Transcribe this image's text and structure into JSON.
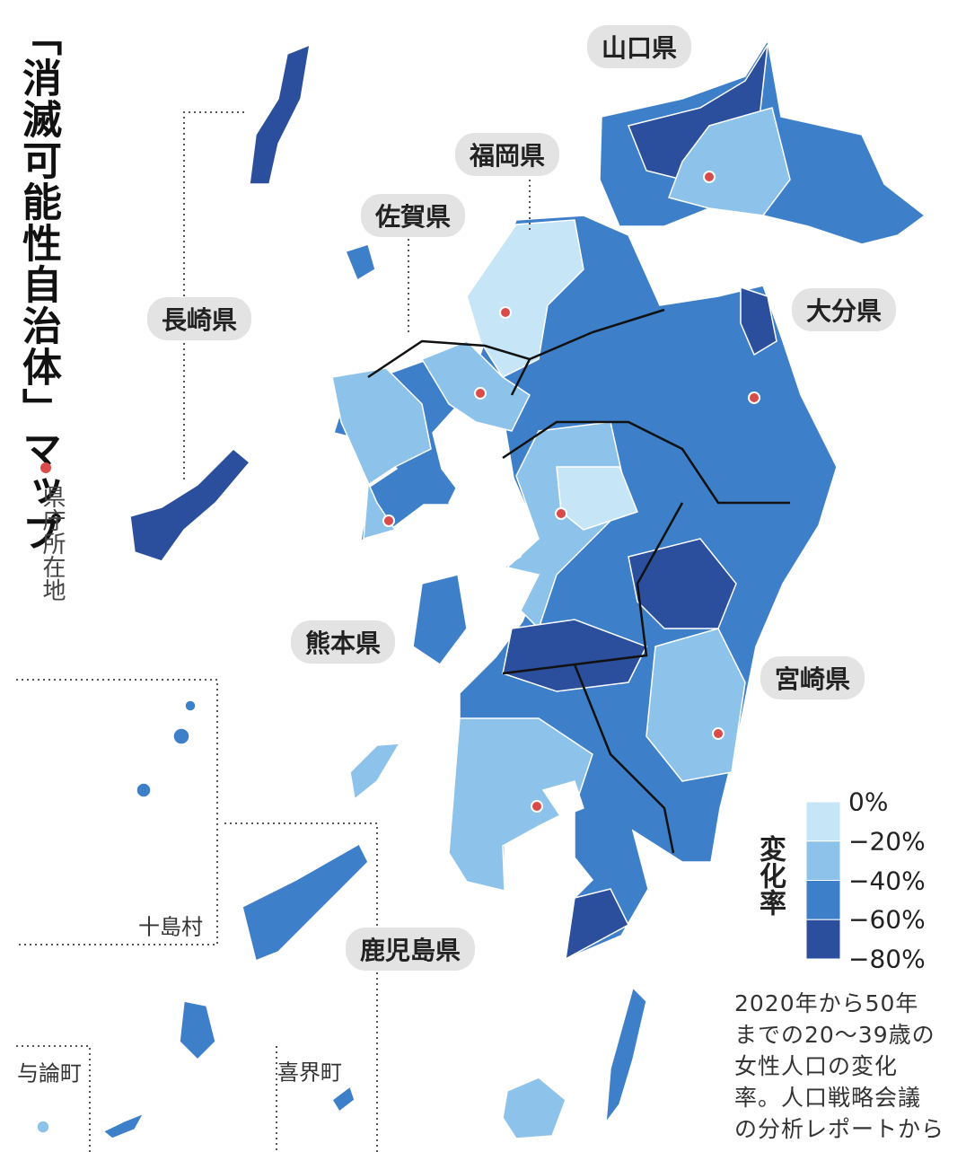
{
  "title": "「消滅可能性自治体」マップ",
  "capital_note": "県庁所在地",
  "prefectures": [
    "山口県",
    "福岡県",
    "佐賀県",
    "長崎県",
    "大分県",
    "熊本県",
    "宮崎県",
    "鹿児島県"
  ],
  "island_labels": [
    "十島村",
    "与論町",
    "喜界町"
  ],
  "legend": {
    "title": "変化率",
    "labels": [
      "0%",
      "−20%",
      "−40%",
      "−60%",
      "−80%"
    ],
    "colors": [
      "#c6e6f7",
      "#8dc3ea",
      "#3d7fc8",
      "#2b4f9c"
    ]
  },
  "source_note": [
    "2020年から50年",
    "までの20〜39歳の",
    "女性人口の変化",
    "率。人口戦略会議",
    "の分析レポートから"
  ]
}
